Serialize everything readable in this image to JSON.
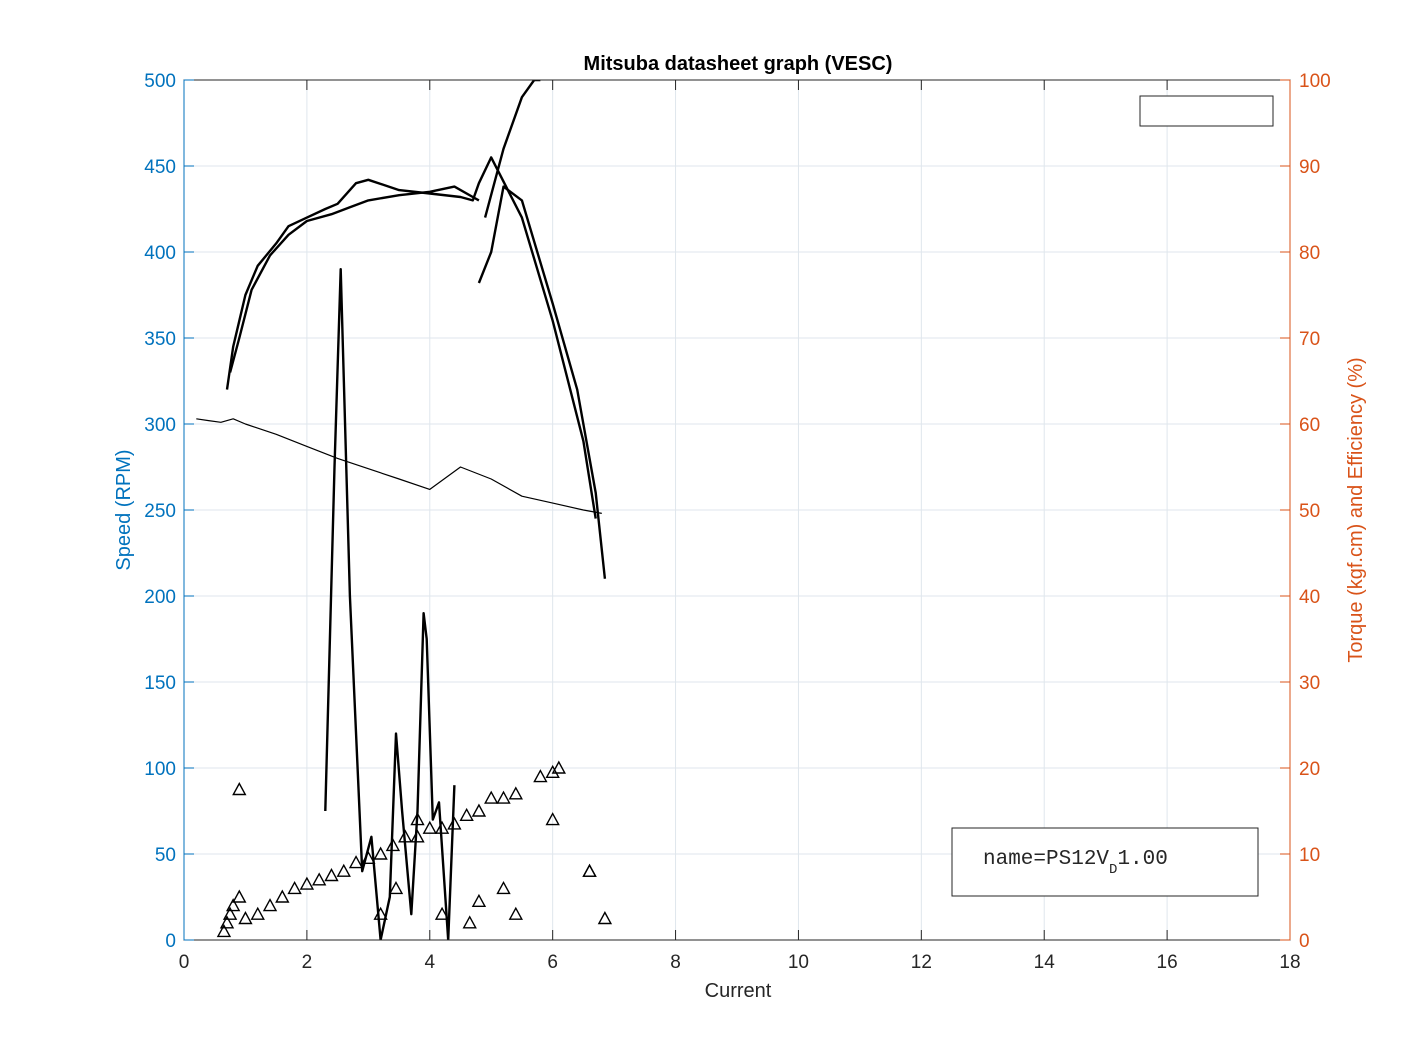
{
  "colors": {
    "left_axis": "#0072bd",
    "right_axis": "#d95319",
    "data": "#000000",
    "grid": "#dfe6ec",
    "frame": "#262626"
  },
  "chart_data": {
    "type": "line",
    "title": "Mitsuba datasheet graph (VESC)",
    "xlabel": "Current",
    "ylabel_left": "Speed (RPM)",
    "ylabel_right": "Torque (kgf.cm) and Efficiency (%)",
    "xlim": [
      0,
      18
    ],
    "ylim_left": [
      0,
      500
    ],
    "ylim_right": [
      0,
      100
    ],
    "x_ticks": [
      "0",
      "2",
      "4",
      "6",
      "8",
      "10",
      "12",
      "14",
      "16",
      "18"
    ],
    "y_left_ticks": [
      "0",
      "50",
      "100",
      "150",
      "200",
      "250",
      "300",
      "350",
      "400",
      "450",
      "500"
    ],
    "y_right_ticks": [
      "0",
      "10",
      "20",
      "30",
      "40",
      "50",
      "60",
      "70",
      "80",
      "90",
      "100"
    ],
    "grid": true,
    "legend": {
      "placement": "top-right",
      "entries": []
    },
    "annotation": {
      "prefix": "name=PS12V",
      "subscript": "D",
      "suffix": "1.00",
      "placement": "bottom-right"
    },
    "series": [
      {
        "axis": "left",
        "style": "line",
        "x": [
          0.2,
          0.4,
          0.6,
          0.8,
          1.0,
          1.5,
          2.0,
          2.5,
          3.0,
          3.5,
          4.0,
          4.5,
          5.0,
          5.5,
          6.0,
          6.5,
          6.8
        ],
        "y": [
          303,
          302,
          301,
          303,
          300,
          294,
          287,
          280,
          274,
          268,
          262,
          275,
          268,
          258,
          254,
          250,
          248
        ]
      },
      {
        "axis": "left",
        "style": "line",
        "x": [
          0.7,
          0.8,
          0.9,
          1.0,
          1.2,
          1.5,
          1.7,
          2.0,
          2.3,
          2.5,
          2.8,
          3.0,
          3.5,
          4.0,
          4.5,
          4.7,
          4.8,
          5.0,
          5.5,
          6.0,
          6.5,
          6.7
        ],
        "y": [
          320,
          345,
          360,
          375,
          392,
          405,
          415,
          420,
          425,
          428,
          440,
          442,
          436,
          434,
          432,
          430,
          440,
          455,
          420,
          360,
          290,
          245
        ]
      },
      {
        "axis": "left",
        "style": "line",
        "x": [
          0.75,
          0.9,
          1.1,
          1.4,
          1.7,
          2.0,
          2.4,
          2.7,
          3.0,
          3.5,
          4.0,
          4.4,
          4.7,
          4.8
        ],
        "y": [
          330,
          350,
          378,
          398,
          410,
          418,
          422,
          426,
          430,
          433,
          435,
          438,
          432,
          430
        ]
      },
      {
        "axis": "left",
        "style": "line",
        "x": [
          4.8,
          5.0,
          5.2,
          5.5,
          6.0,
          6.4,
          6.7,
          6.85
        ],
        "y": [
          382,
          400,
          438,
          430,
          370,
          320,
          260,
          210
        ]
      },
      {
        "axis": "left",
        "style": "line",
        "x": [
          4.9,
          5.2,
          5.5,
          5.7,
          5.8
        ],
        "y": [
          420,
          460,
          490,
          500,
          500
        ]
      },
      {
        "axis": "right",
        "style": "line",
        "x": [
          2.3,
          2.45,
          2.55,
          2.7,
          2.9,
          3.05,
          3.2,
          3.35,
          3.45,
          3.55,
          3.7,
          3.8,
          3.9,
          3.95,
          4.05,
          4.15,
          4.3,
          4.4
        ],
        "y": [
          15,
          55,
          78,
          40,
          8,
          12,
          0,
          5,
          24,
          15,
          3,
          15,
          38,
          35,
          14,
          16,
          0,
          18
        ]
      },
      {
        "axis": "right",
        "style": "markers",
        "x": [
          0.65,
          0.7,
          0.75,
          0.8,
          0.9,
          1.0,
          1.2,
          1.4,
          1.6,
          1.8,
          2.0,
          2.2,
          2.4,
          2.6,
          2.8,
          3.0,
          3.2,
          3.4,
          3.6,
          3.8,
          4.0,
          4.2,
          4.4,
          4.6,
          4.8,
          5.0,
          5.2,
          5.4,
          5.8,
          6.0,
          6.1,
          6.6
        ],
        "y": [
          1,
          2,
          3,
          4,
          5,
          2.5,
          3,
          4,
          5,
          6,
          6.5,
          7,
          7.5,
          8,
          9,
          9.5,
          10,
          11,
          12,
          12,
          13,
          13,
          13.5,
          14.5,
          15,
          16.5,
          16.5,
          17,
          19,
          19.5,
          20,
          8
        ]
      },
      {
        "axis": "right",
        "style": "markers",
        "x": [
          0.9,
          3.2,
          3.45,
          3.8,
          4.2,
          4.65,
          4.8,
          5.2,
          5.4,
          6.0,
          6.6,
          6.85
        ],
        "y": [
          17.5,
          3,
          6,
          14,
          3,
          2,
          4.5,
          6,
          3,
          14,
          8,
          2.5
        ]
      }
    ]
  }
}
